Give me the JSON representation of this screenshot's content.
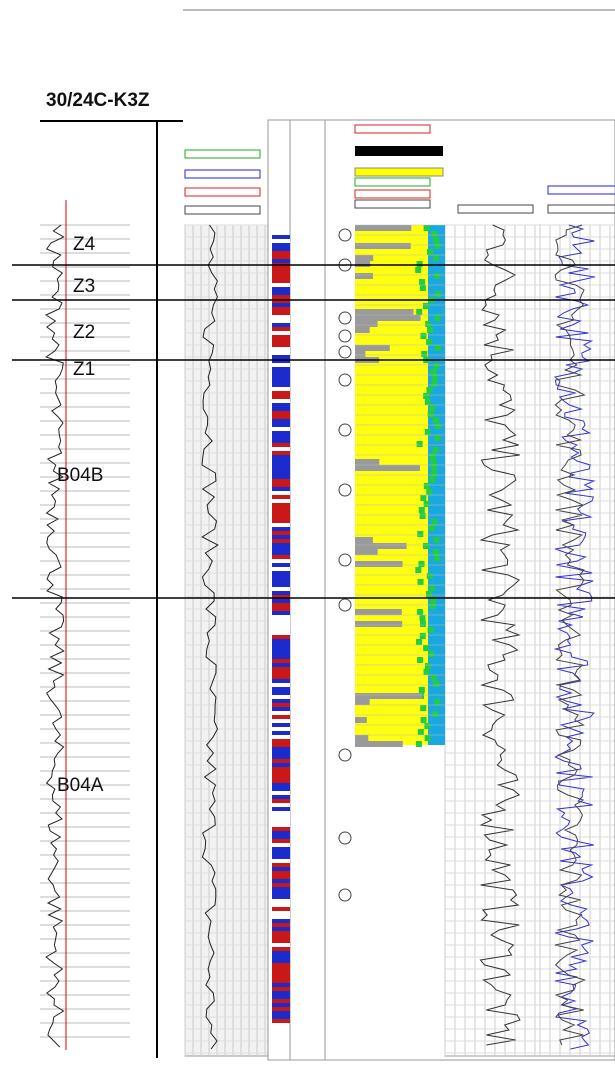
{
  "header": {
    "title": "30/24C-K3Z"
  },
  "zones": [
    {
      "label": "Z4"
    },
    {
      "label": "Z3"
    },
    {
      "label": "Z2"
    },
    {
      "label": "Z1"
    },
    {
      "label": "B04B"
    },
    {
      "label": "B04A"
    }
  ]
}
